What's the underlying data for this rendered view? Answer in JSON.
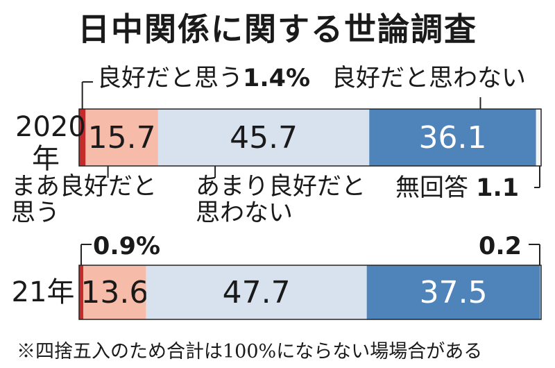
{
  "title": "日中関係に関する世論調査",
  "colors": {
    "good": "#c62b2b",
    "somewhat_good": "#f6bba9",
    "not_very_good": "#d8e2ee",
    "not_good": "#4f84bb",
    "no_answer": "#f5f5f5",
    "outline": "#222222"
  },
  "labels": {
    "good_a": "良好だと思う",
    "good_pct_2020": "1.4%",
    "not_good": "良好だと思わない",
    "somewhat_good_line1": "まあ良好だと",
    "somewhat_good_line2": "思う",
    "not_very_good_line1": "あまり良好だと",
    "not_very_good_line2": "思わない",
    "no_answer": "無回答",
    "no_answer_2020": "1.1",
    "good_pct_2021": "0.9%",
    "no_answer_2021": "0.2"
  },
  "years": {
    "y2020_line1": "2020",
    "y2020_line2": "年",
    "y2021": "21年"
  },
  "footnote": "※四捨五入のため合計は100%にならない場場合がある",
  "chart_data": {
    "type": "bar",
    "orientation": "horizontal-stacked",
    "title": "日中関係に関する世論調査",
    "categories": [
      "2020年",
      "21年"
    ],
    "unit": "%",
    "series": [
      {
        "name": "良好だと思う",
        "values": [
          1.4,
          0.9
        ]
      },
      {
        "name": "まあ良好だと思う",
        "values": [
          15.7,
          13.6
        ]
      },
      {
        "name": "あまり良好だと思わない",
        "values": [
          45.7,
          47.7
        ]
      },
      {
        "name": "良好だと思わない",
        "values": [
          36.1,
          37.5
        ]
      },
      {
        "name": "無回答",
        "values": [
          1.1,
          0.2
        ]
      }
    ]
  }
}
